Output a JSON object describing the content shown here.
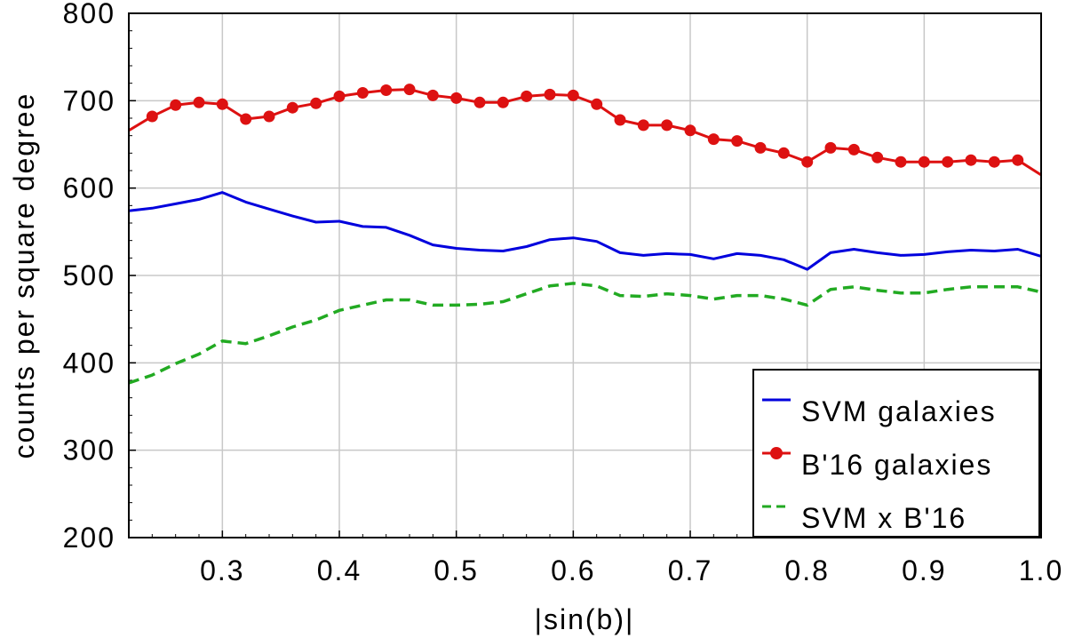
{
  "chart_data": {
    "type": "line",
    "title": "",
    "xlabel": "|sin(b)|",
    "ylabel": "counts per square degree",
    "xlim": [
      0.22,
      1.0
    ],
    "ylim": [
      200,
      800
    ],
    "xticks": [
      0.3,
      0.4,
      0.5,
      0.6,
      0.7,
      0.8,
      0.9,
      1.0
    ],
    "xtick_labels": [
      "0.3",
      "0.4",
      "0.5",
      "0.6",
      "0.7",
      "0.8",
      "0.9",
      "1.0"
    ],
    "yticks": [
      200,
      300,
      400,
      500,
      600,
      700,
      800
    ],
    "ytick_labels": [
      "200",
      "300",
      "400",
      "500",
      "600",
      "700",
      "800"
    ],
    "grid": true,
    "legend_position": "bottom-right",
    "series": [
      {
        "name": "SVM galaxies",
        "color": "#0000dd",
        "style": "solid",
        "marker": "none",
        "x": [
          0.22,
          0.24,
          0.26,
          0.28,
          0.3,
          0.32,
          0.34,
          0.36,
          0.38,
          0.4,
          0.42,
          0.44,
          0.46,
          0.48,
          0.5,
          0.52,
          0.54,
          0.56,
          0.58,
          0.6,
          0.62,
          0.64,
          0.66,
          0.68,
          0.7,
          0.72,
          0.74,
          0.76,
          0.78,
          0.8,
          0.82,
          0.84,
          0.86,
          0.88,
          0.9,
          0.92,
          0.94,
          0.96,
          0.98,
          1.0
        ],
        "y": [
          574,
          577,
          582,
          587,
          595,
          584,
          576,
          568,
          561,
          562,
          556,
          555,
          546,
          535,
          531,
          529,
          528,
          533,
          541,
          543,
          539,
          526,
          523,
          525,
          524,
          519,
          525,
          523,
          518,
          507,
          526,
          530,
          526,
          523,
          524,
          527,
          529,
          528,
          530,
          522
        ]
      },
      {
        "name": "B'16 galaxies",
        "color": "#dd1111",
        "style": "solid",
        "marker": "circle",
        "x": [
          0.22,
          0.24,
          0.26,
          0.28,
          0.3,
          0.32,
          0.34,
          0.36,
          0.38,
          0.4,
          0.42,
          0.44,
          0.46,
          0.48,
          0.5,
          0.52,
          0.54,
          0.56,
          0.58,
          0.6,
          0.62,
          0.64,
          0.66,
          0.68,
          0.7,
          0.72,
          0.74,
          0.76,
          0.78,
          0.8,
          0.82,
          0.84,
          0.86,
          0.88,
          0.9,
          0.92,
          0.94,
          0.96,
          0.98,
          1.0
        ],
        "y": [
          666,
          682,
          695,
          698,
          696,
          679,
          682,
          692,
          697,
          705,
          709,
          712,
          713,
          706,
          703,
          698,
          698,
          705,
          707,
          706,
          696,
          678,
          672,
          672,
          666,
          656,
          654,
          646,
          640,
          630,
          646,
          644,
          635,
          630,
          630,
          630,
          632,
          630,
          632,
          615
        ],
        "marker_x": [
          0.24,
          0.26,
          0.28,
          0.3,
          0.32,
          0.34,
          0.36,
          0.38,
          0.4,
          0.42,
          0.44,
          0.46,
          0.48,
          0.5,
          0.52,
          0.54,
          0.56,
          0.58,
          0.6,
          0.62,
          0.64,
          0.66,
          0.68,
          0.7,
          0.72,
          0.74,
          0.76,
          0.78,
          0.8,
          0.82,
          0.84,
          0.86,
          0.88,
          0.9,
          0.92,
          0.94,
          0.96,
          0.98
        ]
      },
      {
        "name": "SVM x B'16",
        "color": "#22aa22",
        "style": "dashed",
        "marker": "none",
        "x": [
          0.22,
          0.24,
          0.26,
          0.28,
          0.3,
          0.32,
          0.34,
          0.36,
          0.38,
          0.4,
          0.42,
          0.44,
          0.46,
          0.48,
          0.5,
          0.52,
          0.54,
          0.56,
          0.58,
          0.6,
          0.62,
          0.64,
          0.66,
          0.68,
          0.7,
          0.72,
          0.74,
          0.76,
          0.78,
          0.8,
          0.82,
          0.84,
          0.86,
          0.88,
          0.9,
          0.92,
          0.94,
          0.96,
          0.98,
          1.0
        ],
        "y": [
          377,
          386,
          399,
          410,
          425,
          422,
          431,
          441,
          449,
          460,
          466,
          472,
          472,
          466,
          466,
          467,
          470,
          479,
          488,
          491,
          488,
          477,
          476,
          479,
          477,
          473,
          477,
          477,
          473,
          466,
          484,
          487,
          483,
          480,
          480,
          484,
          487,
          487,
          487,
          481
        ]
      }
    ]
  }
}
